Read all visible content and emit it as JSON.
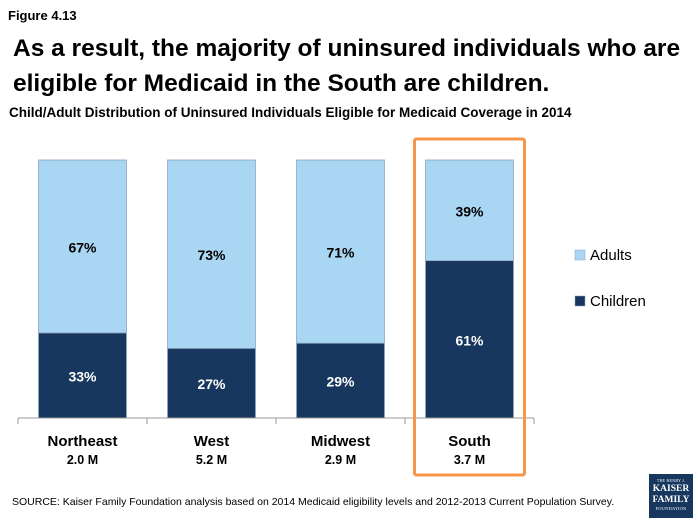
{
  "figure_label": "Figure 4.13",
  "headline": "As a result, the majority of uninsured individuals who are eligible for Medicaid in the South are children.",
  "source": "SOURCE: Kaiser Family Foundation analysis based on 2014 Medicaid eligibility levels and 2012-2013 Current Population Survey.",
  "logo": {
    "line1": "THE HENRY J.",
    "line2": "KAISER",
    "line3": "FAMILY",
    "line4": "FOUNDATION"
  },
  "chart_data": {
    "type": "bar",
    "stacked": true,
    "title": "Child/Adult Distribution of Uninsured Individuals Eligible for Medicaid Coverage in 2014",
    "categories": [
      "Northeast",
      "West",
      "Midwest",
      "South"
    ],
    "category_sublabels": [
      "2.0 M",
      "5.2 M",
      "2.9 M",
      "3.7 M"
    ],
    "series": [
      {
        "name": "Children",
        "values": [
          33,
          27,
          29,
          61
        ],
        "labels": [
          "33%",
          "27%",
          "29%",
          "61%"
        ],
        "color": "#17375e"
      },
      {
        "name": "Adults",
        "values": [
          67,
          73,
          71,
          39
        ],
        "labels": [
          "67%",
          "73%",
          "71%",
          "39%"
        ],
        "color": "#a9d6f2"
      }
    ],
    "legend_order": [
      "Adults",
      "Children"
    ],
    "legend_position": "right",
    "highlight_category": "South",
    "highlight_color": "#f79646",
    "ylim": [
      0,
      100
    ],
    "grid": false
  }
}
